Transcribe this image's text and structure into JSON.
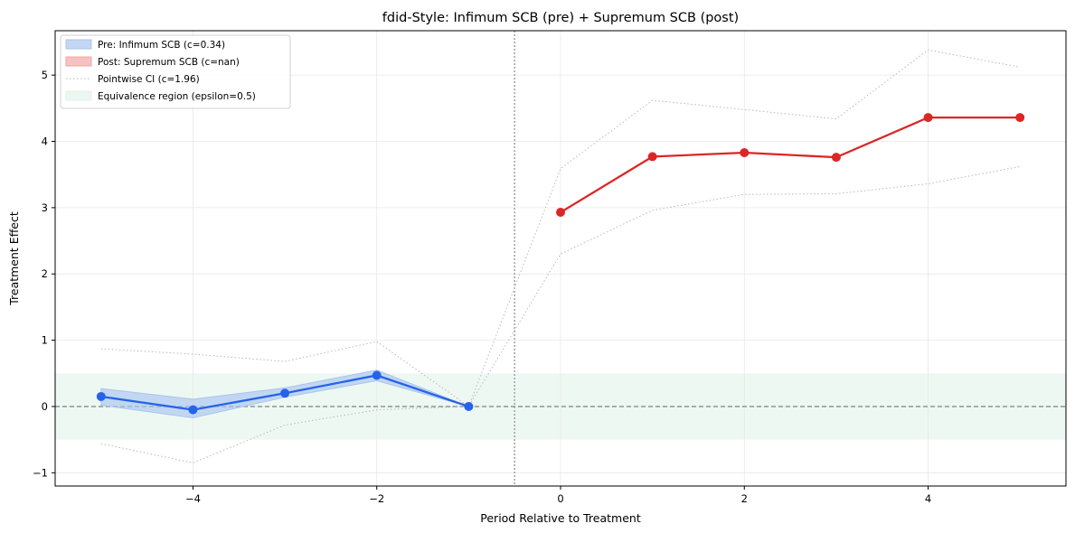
{
  "chart_data": {
    "type": "line",
    "title": "fdid-Style: Infimum SCB (pre) + Supremum SCB (post)",
    "xlabel": "Period Relative to Treatment",
    "ylabel": "Treatment Effect",
    "xlim": [
      -5.5,
      5.5
    ],
    "ylim": [
      -1.2,
      5.67
    ],
    "xticks": [
      -4,
      -2,
      0,
      2,
      4
    ],
    "xtick_labels": [
      "−4",
      "−2",
      "0",
      "2",
      "4"
    ],
    "yticks": [
      -1,
      0,
      1,
      2,
      3,
      4,
      5
    ],
    "ytick_labels": [
      "−1",
      "0",
      "1",
      "2",
      "3",
      "4",
      "5"
    ],
    "grid": true,
    "legend_position": "top-left",
    "treatment_line_x": -0.5,
    "zero_line_y": 0,
    "equivalence_epsilon": 0.5,
    "colors": {
      "pre": "#2563eb",
      "pre_band": "#a9c4ef",
      "post": "#dc2626",
      "post_band": "#f2a6a6",
      "pointwise": "#b8b8b8",
      "equivalence": "#e3f3ea",
      "zero_line": "#808080",
      "vline": "#a0a0a0",
      "grid": "#e8e8e8"
    },
    "series": [
      {
        "name": "pre",
        "x": [
          -5,
          -4,
          -3,
          -2,
          -1
        ],
        "y": [
          0.15,
          -0.05,
          0.2,
          0.47,
          0.0
        ],
        "band_lower": [
          0.02,
          -0.17,
          0.14,
          0.39,
          0.0
        ],
        "band_upper": [
          0.27,
          0.11,
          0.28,
          0.55,
          0.0
        ]
      },
      {
        "name": "post",
        "x": [
          0,
          1,
          2,
          3,
          4,
          5
        ],
        "y": [
          2.93,
          3.77,
          3.83,
          3.76,
          4.36,
          4.36
        ]
      }
    ],
    "pointwise_ci": {
      "x": [
        -5,
        -4,
        -3,
        -2,
        -1,
        0,
        1,
        2,
        3,
        4,
        5
      ],
      "lower": [
        -0.56,
        -0.85,
        -0.28,
        -0.05,
        0.0,
        2.3,
        2.96,
        3.2,
        3.21,
        3.36,
        3.62
      ],
      "upper": [
        0.87,
        0.79,
        0.68,
        0.98,
        0.0,
        3.59,
        4.62,
        4.48,
        4.34,
        5.38,
        5.12
      ]
    },
    "legend": [
      {
        "label": "Pre: Infimum SCB (c=0.34)",
        "kind": "patch",
        "color_key": "pre_band"
      },
      {
        "label": "Post: Supremum SCB (c=nan)",
        "kind": "patch",
        "color_key": "post_band"
      },
      {
        "label": "Pointwise CI (c=1.96)",
        "kind": "dotted",
        "color_key": "pointwise"
      },
      {
        "label": "Equivalence region (epsilon=0.5)",
        "kind": "patch",
        "color_key": "equivalence"
      }
    ]
  }
}
